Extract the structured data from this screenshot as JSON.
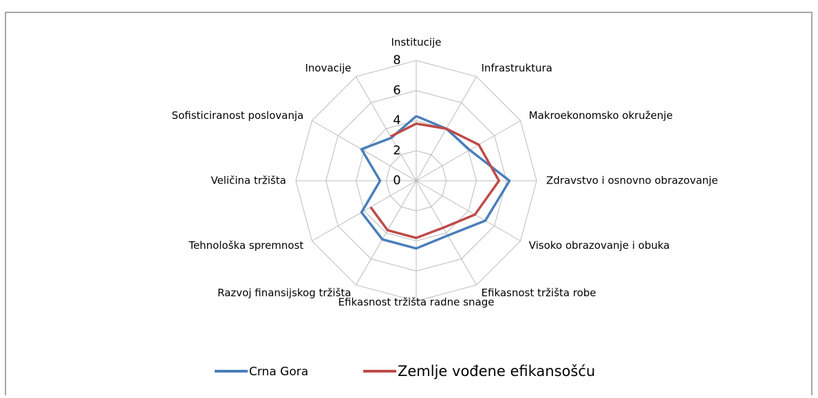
{
  "chart_data": {
    "type": "radar",
    "categories": [
      "Institucije",
      "Infrastruktura",
      "Makroekonomsko okruženje",
      "Zdravstvo i osnovno obrazovanje",
      "Visoko obrazovanje i obuka",
      "Efikasnost tržišta robe",
      "Efikasnost tržišta radne snage",
      "Razvoj finansijskog tržišta",
      "Tehnološka spremnost",
      "Veličina tržišta",
      "Sofisticiranost poslovanja",
      "Inovacije"
    ],
    "series": [
      {
        "name": "Crna Gora",
        "color": "#4a7ebb",
        "values": [
          4.3,
          4.0,
          4.1,
          6.2,
          5.3,
          4.2,
          4.5,
          4.5,
          4.2,
          2.4,
          4.2,
          3.3
        ]
      },
      {
        "name": "Zemlje vođene efikansošću",
        "color": "#be4b48",
        "values": [
          3.8,
          4.0,
          4.8,
          5.5,
          4.5,
          3.6,
          3.8,
          3.8,
          3.5,
          null,
          null,
          3.4
        ]
      }
    ],
    "ylim": [
      0,
      8
    ],
    "yticks": [
      0,
      2,
      4,
      6,
      8
    ],
    "grid": true
  }
}
